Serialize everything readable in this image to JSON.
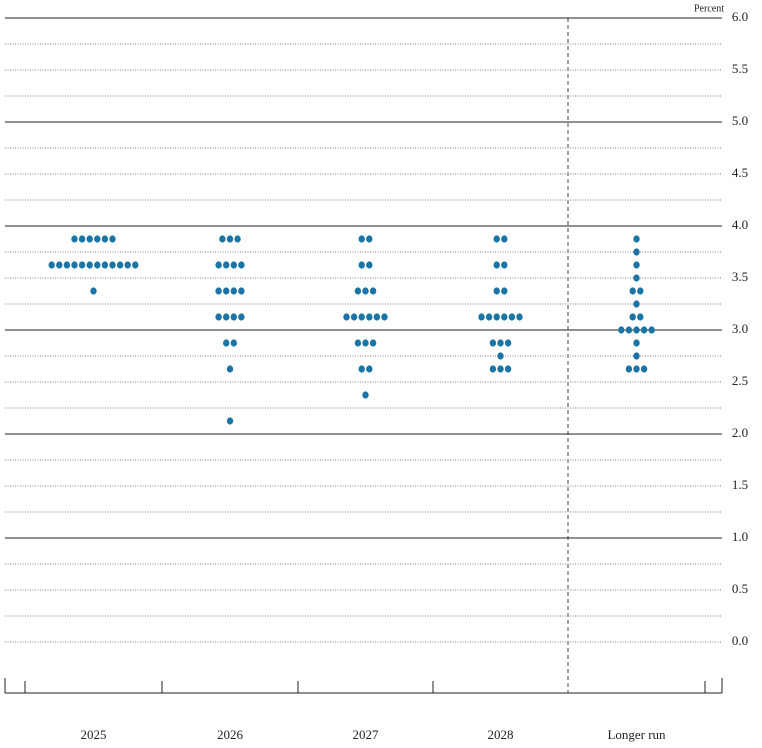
{
  "chart_data": {
    "type": "dot",
    "y_axis_label": "Percent",
    "categories": [
      "2025",
      "2026",
      "2027",
      "2028",
      "Longer run"
    ],
    "dots": [
      [
        {
          "rate": 3.875,
          "count": 6
        },
        {
          "rate": 3.625,
          "count": 12
        },
        {
          "rate": 3.375,
          "count": 1
        }
      ],
      [
        {
          "rate": 3.875,
          "count": 3
        },
        {
          "rate": 3.625,
          "count": 4
        },
        {
          "rate": 3.375,
          "count": 4
        },
        {
          "rate": 3.125,
          "count": 4
        },
        {
          "rate": 2.875,
          "count": 2
        },
        {
          "rate": 2.625,
          "count": 1
        },
        {
          "rate": 2.125,
          "count": 1
        }
      ],
      [
        {
          "rate": 3.875,
          "count": 2
        },
        {
          "rate": 3.625,
          "count": 2
        },
        {
          "rate": 3.375,
          "count": 3
        },
        {
          "rate": 3.125,
          "count": 6
        },
        {
          "rate": 2.875,
          "count": 3
        },
        {
          "rate": 2.625,
          "count": 2
        },
        {
          "rate": 2.375,
          "count": 1
        }
      ],
      [
        {
          "rate": 3.875,
          "count": 2
        },
        {
          "rate": 3.625,
          "count": 2
        },
        {
          "rate": 3.375,
          "count": 2
        },
        {
          "rate": 3.125,
          "count": 6
        },
        {
          "rate": 2.875,
          "count": 3
        },
        {
          "rate": 2.75,
          "count": 1
        },
        {
          "rate": 2.625,
          "count": 3
        }
      ],
      [
        {
          "rate": 3.875,
          "count": 1
        },
        {
          "rate": 3.75,
          "count": 1
        },
        {
          "rate": 3.625,
          "count": 1
        },
        {
          "rate": 3.5,
          "count": 1
        },
        {
          "rate": 3.375,
          "count": 2
        },
        {
          "rate": 3.25,
          "count": 1
        },
        {
          "rate": 3.125,
          "count": 2
        },
        {
          "rate": 3.0,
          "count": 5
        },
        {
          "rate": 2.875,
          "count": 1
        },
        {
          "rate": 2.75,
          "count": 1
        },
        {
          "rate": 2.625,
          "count": 3
        }
      ]
    ],
    "color": "#1a75a6",
    "ylim": [
      -0.5,
      6.0
    ],
    "yticks": [
      {
        "value": 0,
        "label": "0.0"
      },
      0.5,
      {
        "value": 1,
        "label": "1.0"
      },
      1.5,
      {
        "value": 2,
        "label": "2.0"
      },
      2.5,
      {
        "value": 3,
        "label": "3.0"
      },
      3.5,
      {
        "value": 4,
        "label": "4.0"
      },
      4.5,
      {
        "value": 5,
        "label": "5.0"
      },
      5.5,
      {
        "value": 6,
        "label": "6.0"
      }
    ],
    "ygrid": [
      0,
      0.25,
      0.5,
      0.75,
      1,
      1.25,
      1.5,
      1.75,
      2,
      2.25,
      2.5,
      2.75,
      3,
      3.25,
      3.5,
      3.75,
      4,
      4.25,
      4.5,
      4.75,
      5,
      5.25,
      5.5,
      5.75,
      6
    ]
  }
}
